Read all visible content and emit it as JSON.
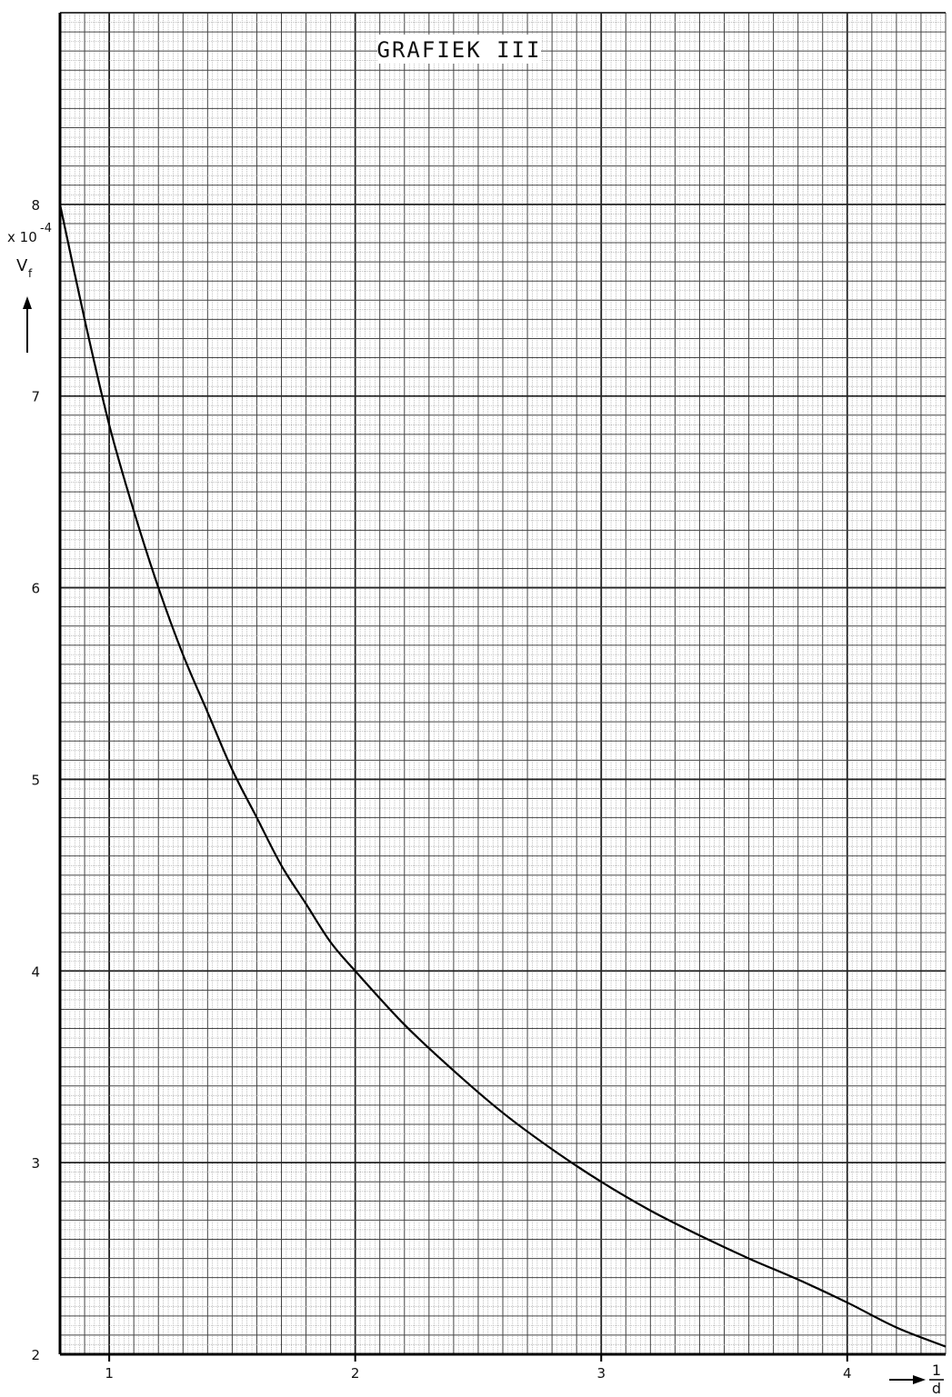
{
  "chart_data": {
    "type": "line",
    "title": "GRAFIEK III",
    "ylabel": "V_f",
    "ylabel_main": "V",
    "ylabel_sub": "f",
    "y_multiplier_base": "x 10",
    "y_multiplier_exp": "-4",
    "xlabel_numerator": "1",
    "xlabel_denominator": "d",
    "xlim": [
      0.8,
      4.4
    ],
    "ylim": [
      2,
      9
    ],
    "x_ticks": [
      "1",
      "2",
      "3",
      "4"
    ],
    "y_ticks": [
      "2",
      "3",
      "4",
      "5",
      "6",
      "7",
      "8"
    ],
    "grid": true,
    "series": [
      {
        "x": [
          0.8,
          0.9,
          1.0,
          1.1,
          1.2,
          1.3,
          1.4,
          1.5,
          1.6,
          1.7,
          1.8,
          1.9,
          2.0,
          2.2,
          2.4,
          2.6,
          2.8,
          3.0,
          3.2,
          3.4,
          3.6,
          3.8,
          4.0,
          4.2,
          4.4
        ],
        "y": [
          8.0,
          7.4,
          6.85,
          6.4,
          6.0,
          5.65,
          5.35,
          5.05,
          4.8,
          4.55,
          4.35,
          4.15,
          4.0,
          3.72,
          3.48,
          3.26,
          3.07,
          2.9,
          2.75,
          2.62,
          2.5,
          2.39,
          2.27,
          2.14,
          2.04
        ]
      }
    ]
  }
}
